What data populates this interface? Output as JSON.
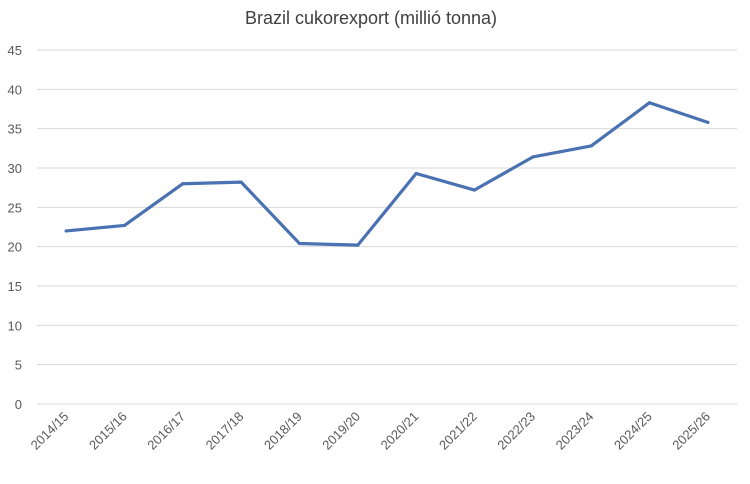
{
  "chart_data": {
    "type": "line",
    "title": "Brazil cukorexport (millió tonna)",
    "xlabel": "",
    "ylabel": "",
    "categories": [
      "2014/15",
      "2015/16",
      "2016/17",
      "2017/18",
      "2018/19",
      "2019/20",
      "2020/21",
      "2021/22",
      "2022/23",
      "2023/24",
      "2024/25",
      "2025/26"
    ],
    "series": [
      {
        "values": [
          22.0,
          22.7,
          28.0,
          28.2,
          20.4,
          20.2,
          29.3,
          27.2,
          31.4,
          32.8,
          38.3,
          35.8
        ]
      }
    ],
    "ylim": [
      0,
      45
    ],
    "yticks": [
      0,
      5,
      10,
      15,
      20,
      25,
      30,
      35,
      40,
      45
    ],
    "grid": true,
    "legend": "none",
    "line_color": "#4a72b2",
    "grid_color": "#d9d9d9"
  }
}
